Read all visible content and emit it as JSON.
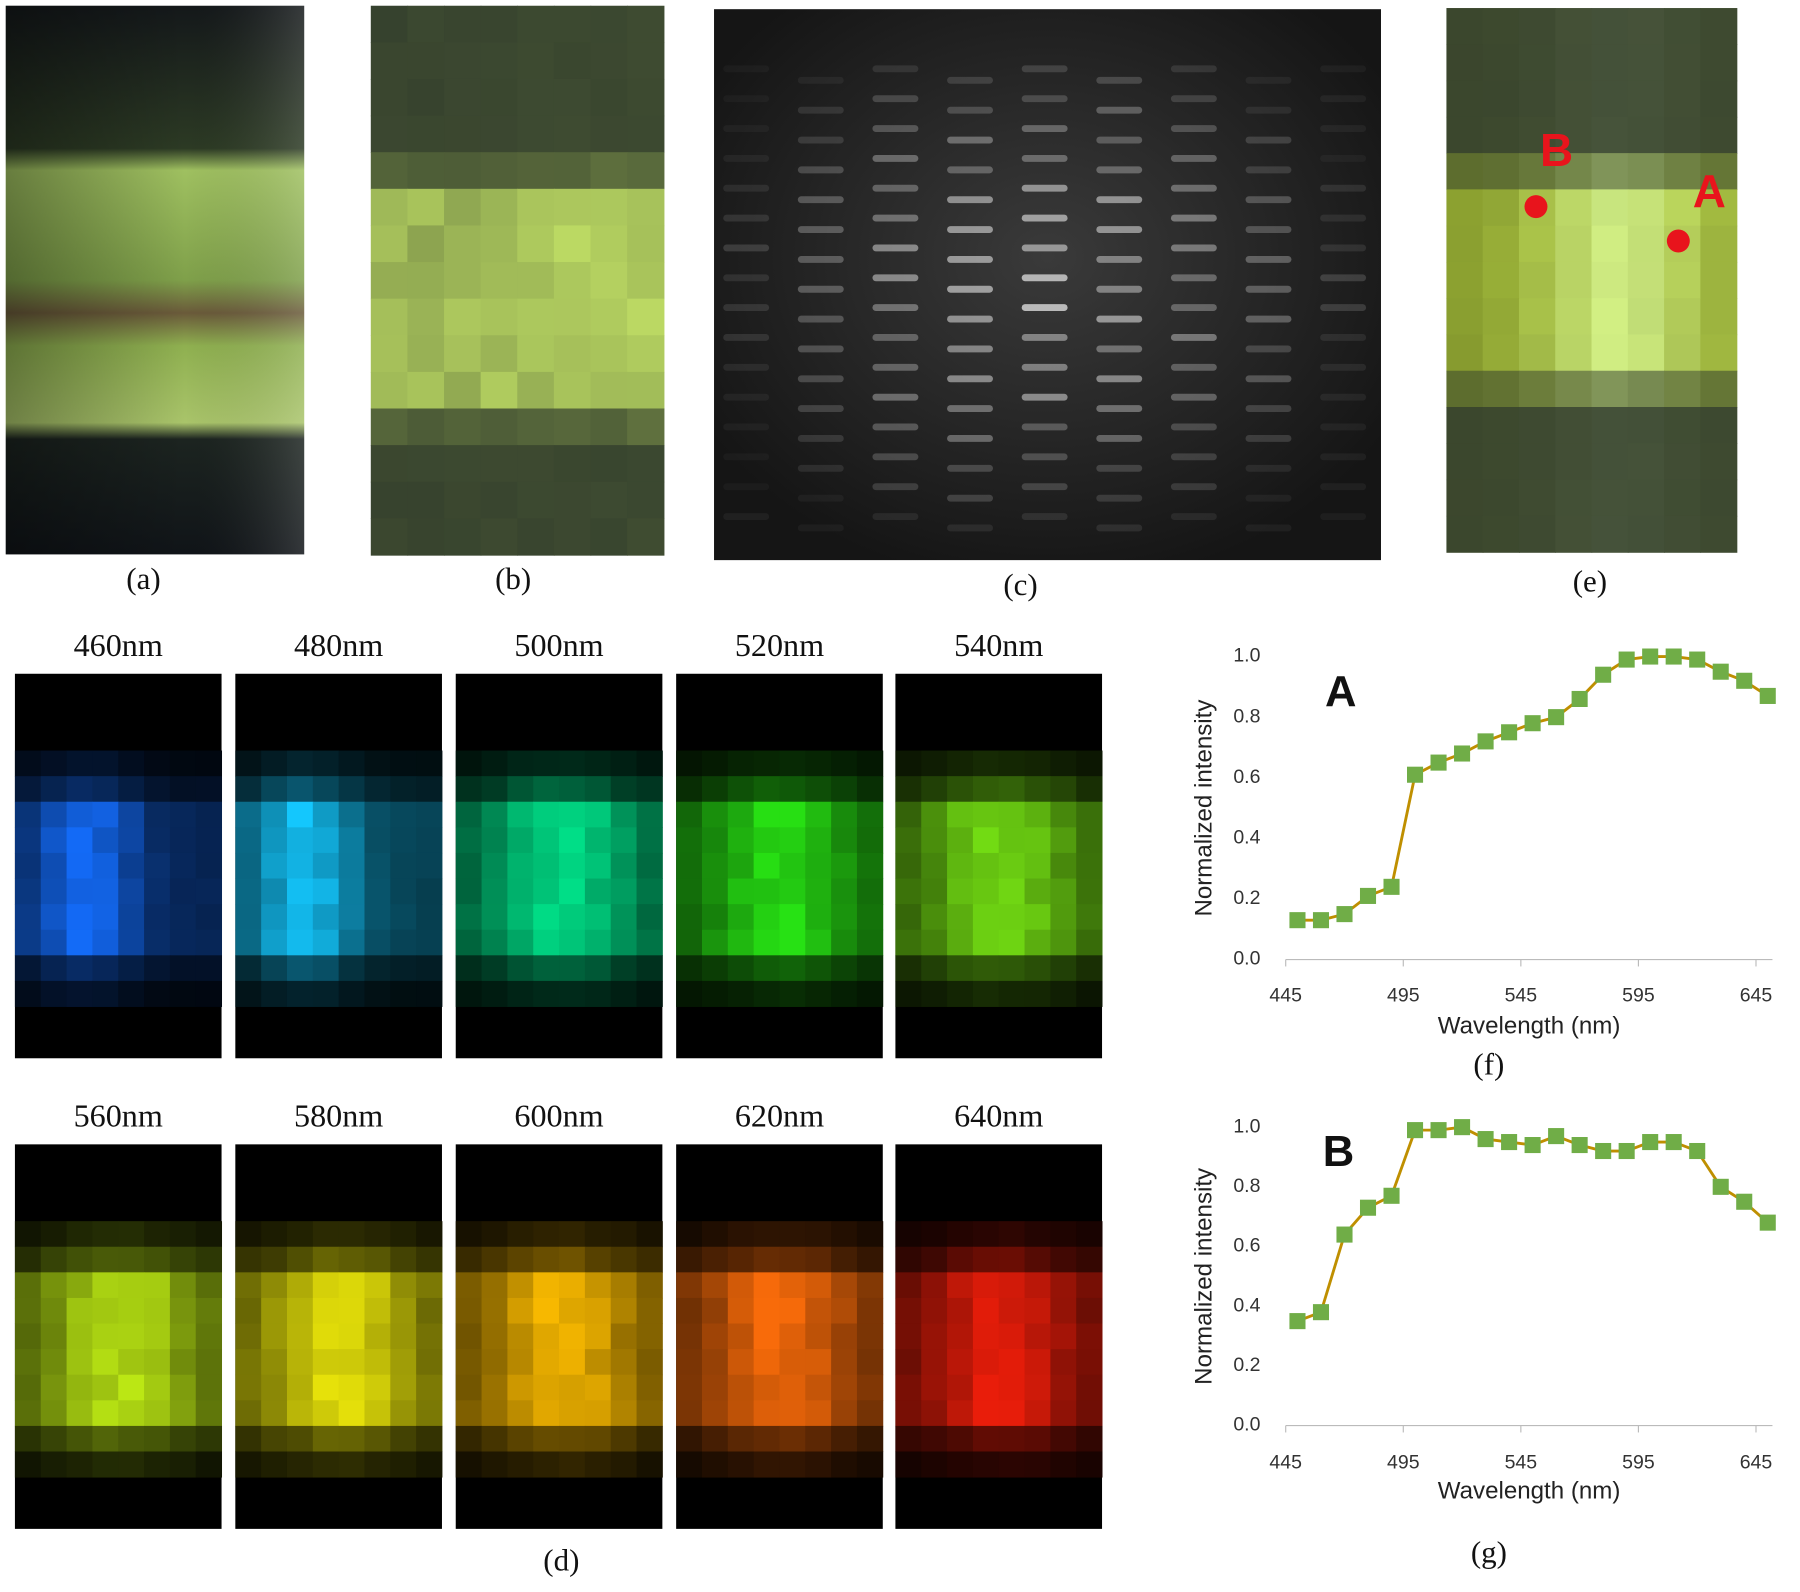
{
  "figure": {
    "panels": {
      "a": "(a)",
      "b": "(b)",
      "c": "(c)",
      "e": "(e)",
      "d": "(d)"
    },
    "wavelengths": [
      "460nm",
      "480nm",
      "500nm",
      "520nm",
      "540nm",
      "560nm",
      "580nm",
      "600nm",
      "620nm",
      "640nm"
    ],
    "points": [
      "A",
      "B"
    ]
  },
  "chart_data": [
    {
      "type": "line",
      "annotation": "A",
      "caption": "(f)",
      "x_label": "Wavelength (nm)",
      "y_label": "Normalized intensity",
      "x": [
        450,
        460,
        470,
        480,
        490,
        500,
        510,
        520,
        530,
        540,
        550,
        560,
        570,
        580,
        590,
        600,
        610,
        620,
        630,
        640,
        650
      ],
      "series": [
        {
          "color": "#70ad47",
          "line_color": "#bf8f00",
          "values": [
            0.13,
            0.13,
            0.15,
            0.21,
            0.24,
            0.61,
            0.65,
            0.68,
            0.72,
            0.75,
            0.78,
            0.8,
            0.86,
            0.94,
            0.99,
            1.0,
            1.0,
            0.99,
            0.95,
            0.92,
            0.87
          ]
        }
      ],
      "xlim": [
        445,
        652
      ],
      "xticks": [
        445,
        495,
        545,
        595,
        645
      ],
      "ylim": [
        0,
        1
      ],
      "yticks": [
        {
          "value": 0,
          "label": "0.0"
        },
        0.2,
        0.4,
        0.6,
        0.8,
        {
          "value": 1,
          "label": "1.0"
        }
      ]
    },
    {
      "type": "line",
      "annotation": "B",
      "caption": "(g)",
      "x_label": "Wavelength (nm)",
      "y_label": "Normalized intensity",
      "x": [
        450,
        460,
        470,
        480,
        490,
        500,
        510,
        520,
        530,
        540,
        550,
        560,
        570,
        580,
        590,
        600,
        610,
        620,
        630,
        640,
        650
      ],
      "series": [
        {
          "color": "#70ad47",
          "line_color": "#bf8f00",
          "values": [
            0.35,
            0.38,
            0.64,
            0.73,
            0.77,
            0.99,
            0.99,
            1.0,
            0.96,
            0.95,
            0.94,
            0.97,
            0.94,
            0.92,
            0.92,
            0.95,
            0.95,
            0.92,
            0.8,
            0.75,
            0.68
          ]
        }
      ],
      "xlim": [
        445,
        652
      ],
      "xticks": [
        445,
        495,
        545,
        595,
        645
      ],
      "ylim": [
        0,
        1
      ],
      "yticks": [
        {
          "value": 0,
          "label": "0.0"
        },
        0.2,
        0.4,
        0.6,
        0.8,
        {
          "value": 1,
          "label": "1.0"
        }
      ]
    }
  ]
}
